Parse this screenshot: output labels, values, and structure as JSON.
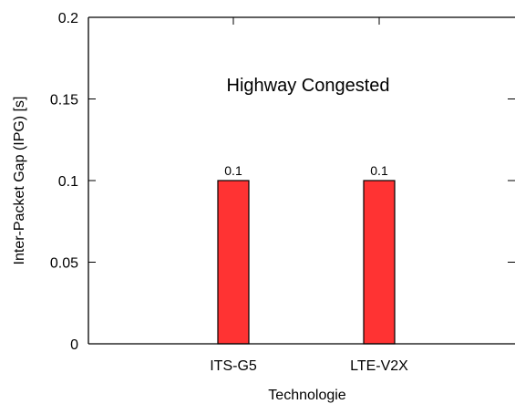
{
  "chart_data": {
    "type": "bar",
    "annotation": "Highway Congested",
    "xlabel": "Technologie",
    "ylabel": "Inter-Packet Gap (IPG) [s]",
    "ylim": [
      0,
      0.2
    ],
    "yticks": [
      0,
      0.05,
      0.1,
      0.15,
      0.2
    ],
    "ytick_labels": [
      "0",
      "0.05",
      "0.1",
      "0.15",
      "0.2"
    ],
    "categories": [
      "ITS-G5",
      "LTE-V2X"
    ],
    "values": [
      0.1,
      0.1
    ],
    "data_labels": [
      "0.1",
      "0.1"
    ],
    "bar_color": "#ff3333",
    "grid": false,
    "legend": "none"
  }
}
